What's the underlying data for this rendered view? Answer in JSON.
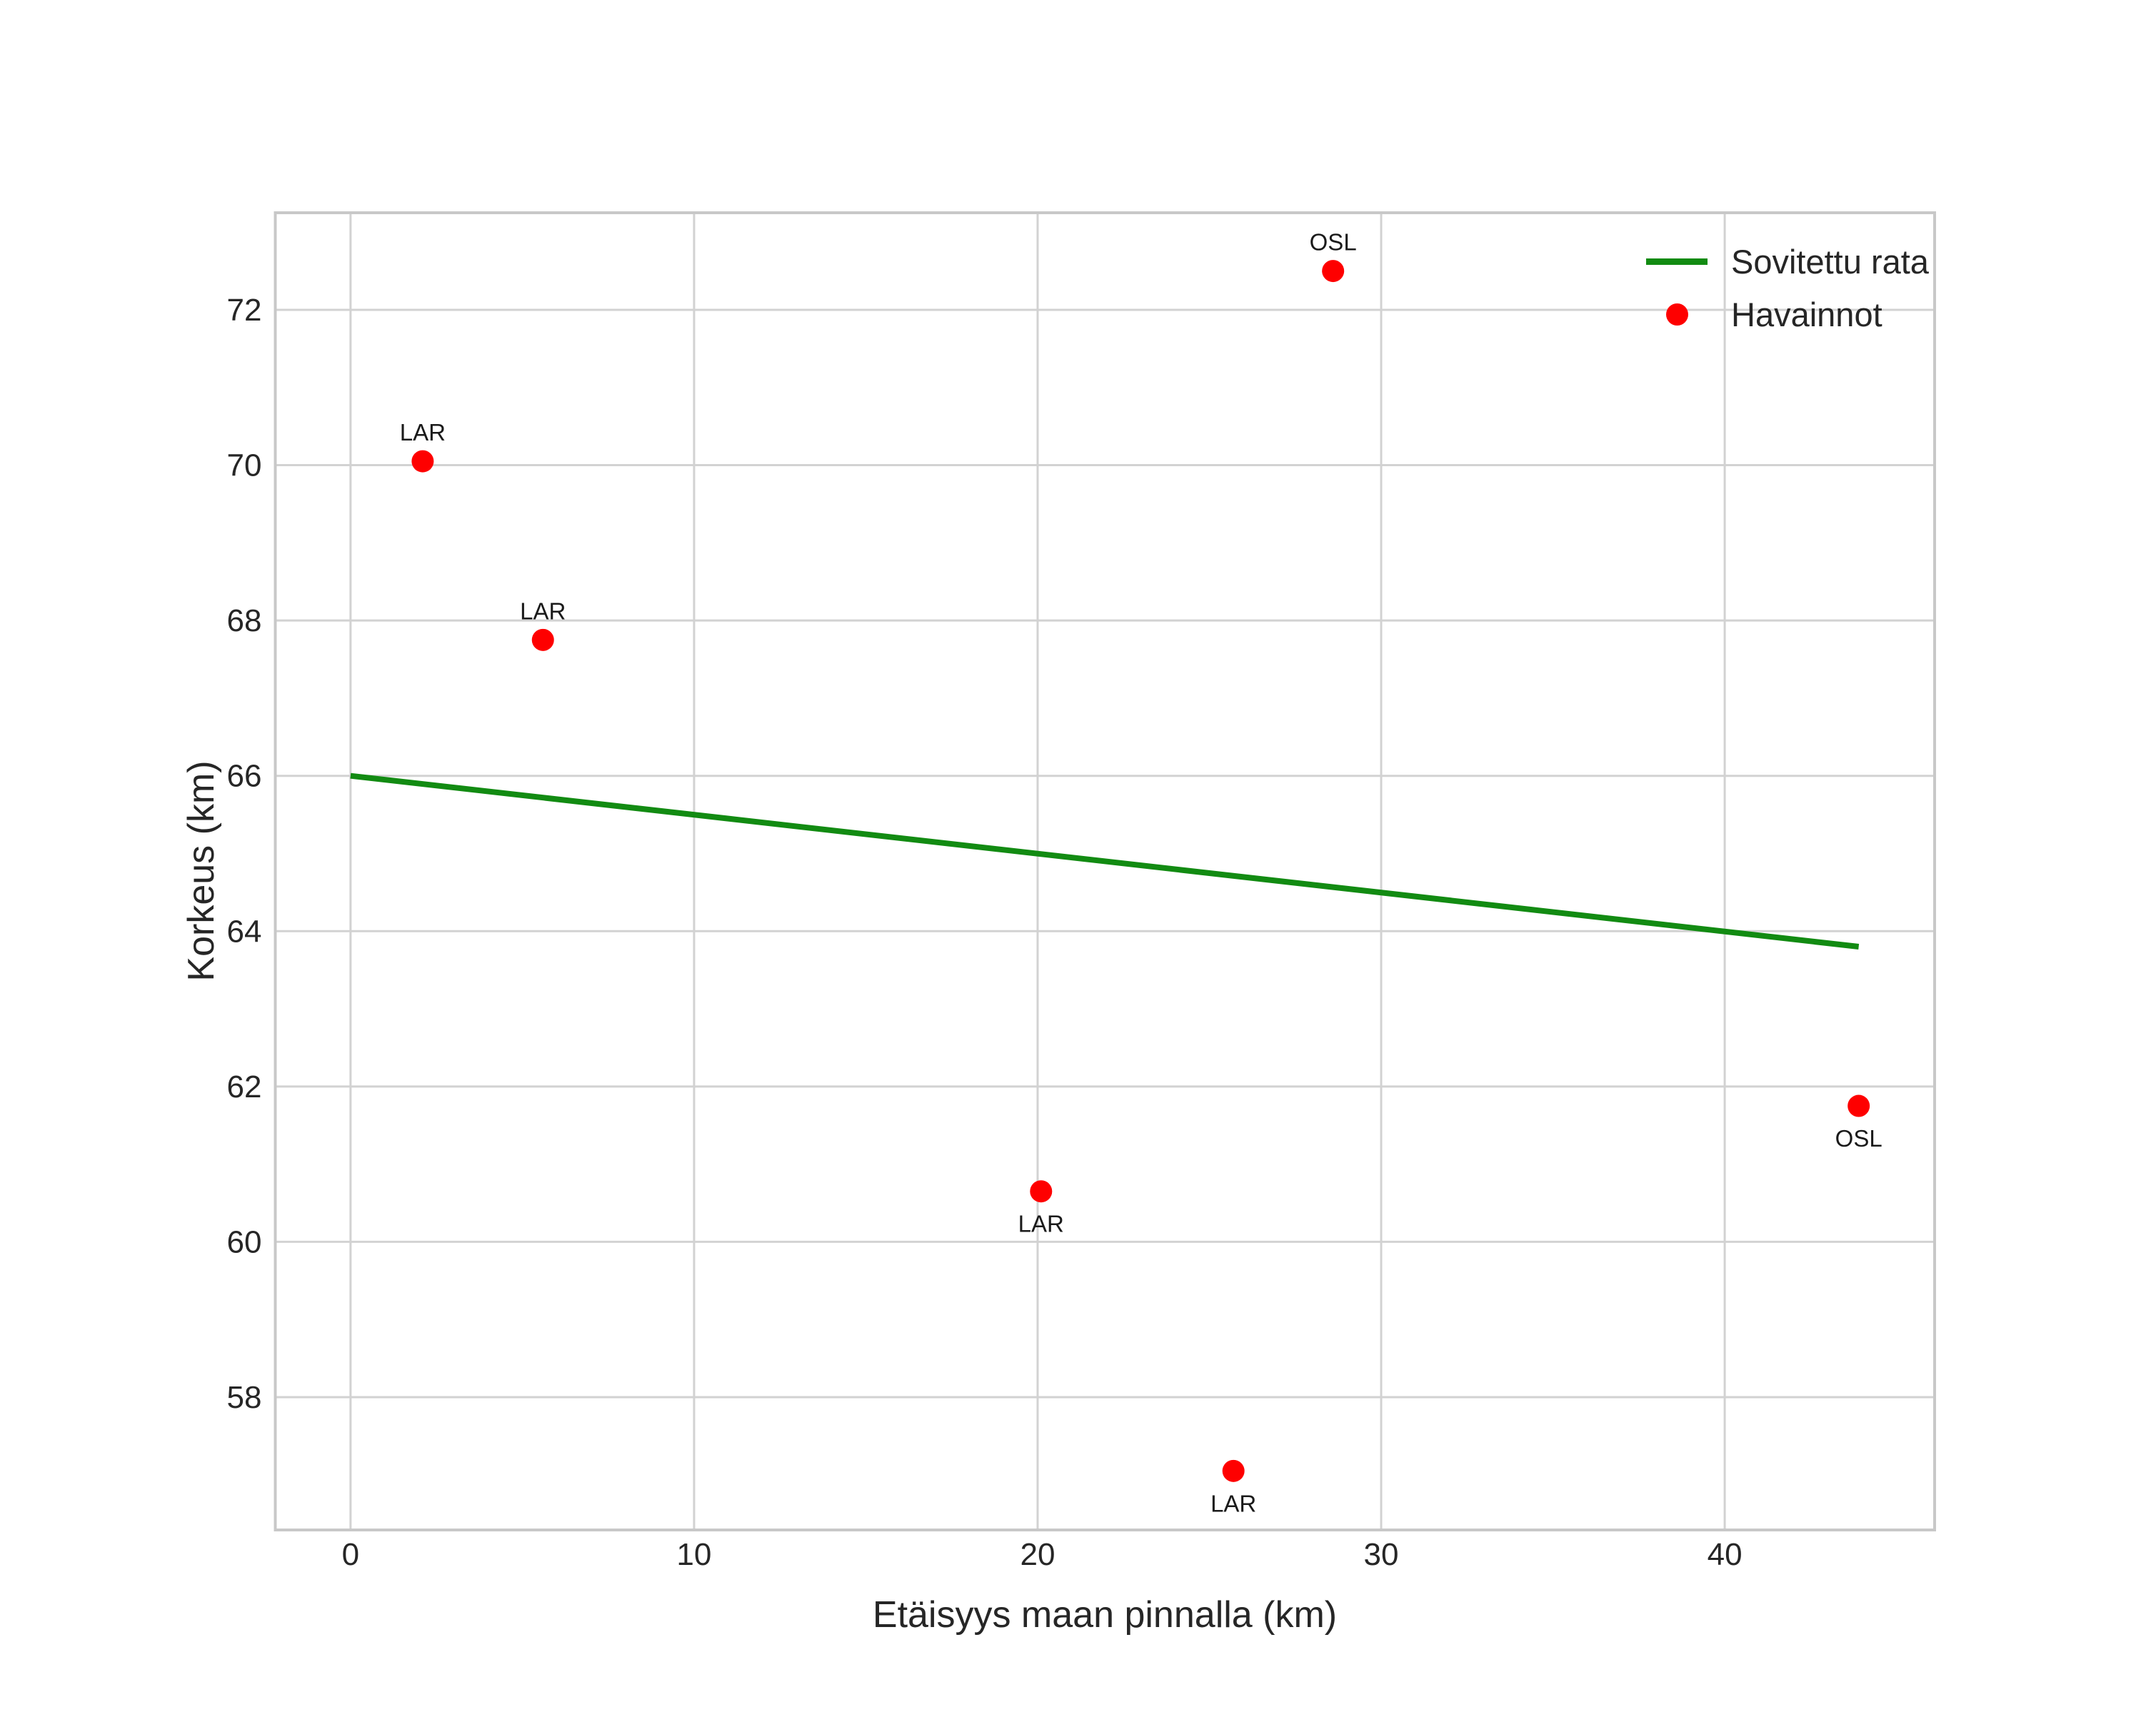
{
  "chart_data": {
    "type": "scatter",
    "xlabel": "Etäisyys maan pinnalla (km)",
    "ylabel": "Korkeus (km)",
    "xlim": [
      -2.19,
      46.11
    ],
    "ylim": [
      56.29,
      73.25
    ],
    "x_ticks": [
      0,
      10,
      20,
      30,
      40
    ],
    "y_ticks": [
      72,
      70,
      68,
      66,
      64,
      62,
      60,
      58
    ],
    "grid": true,
    "legend_position": "upper right",
    "series": [
      {
        "name": "Sovitettu rata",
        "type": "line",
        "color": "#128b12",
        "points": [
          {
            "x": 0,
            "y": 66.0
          },
          {
            "x": 43.9,
            "y": 63.8
          }
        ]
      },
      {
        "name": "Havainnot",
        "type": "scatter",
        "color": "#fe0000",
        "points": [
          {
            "x": 2.1,
            "y": 70.05,
            "label": "LAR",
            "label_side": "above"
          },
          {
            "x": 5.6,
            "y": 67.75,
            "label": "LAR",
            "label_side": "above"
          },
          {
            "x": 28.6,
            "y": 72.5,
            "label": "OSL",
            "label_side": "above"
          },
          {
            "x": 20.1,
            "y": 60.65,
            "label": "LAR",
            "label_side": "below"
          },
          {
            "x": 25.7,
            "y": 57.05,
            "label": "LAR",
            "label_side": "below"
          },
          {
            "x": 43.9,
            "y": 61.75,
            "label": "OSL",
            "label_side": "below"
          }
        ]
      }
    ],
    "legend": [
      {
        "label": "Sovitettu rata",
        "marker": "line",
        "color": "#128b12"
      },
      {
        "label": "Havainnot",
        "marker": "dot",
        "color": "#fe0000"
      }
    ]
  },
  "colors": {
    "fit_line": "#128b12",
    "observation": "#fe0000",
    "grid": "#d2d2d2",
    "spine": "#c8c8c8",
    "tick_text": "#262626",
    "annotation_text": "#1a1a1a",
    "background": "#ffffff"
  }
}
